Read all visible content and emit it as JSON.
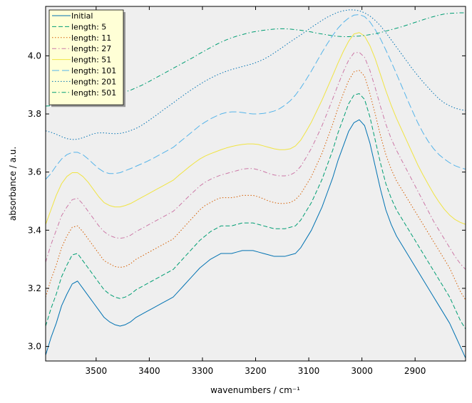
{
  "chart_data": {
    "type": "line",
    "title": "",
    "xlabel": "wavenumbers / cm⁻¹",
    "ylabel": "absorbance / a.u.",
    "xlim": [
      3595,
      2805
    ],
    "ylim": [
      2.95,
      4.17
    ],
    "x_inverted": true,
    "xticks": [
      3500,
      3400,
      3300,
      3200,
      3100,
      3000,
      2900
    ],
    "yticks": [
      3.0,
      3.2,
      3.4,
      3.6,
      3.8,
      4.0
    ],
    "ytick_labels": [
      "3.0",
      "3.2",
      "3.4",
      "3.6",
      "3.8",
      "4.0"
    ],
    "grid": false,
    "background": "#efefef",
    "legend_position": "top-left",
    "x": [
      3595,
      3585,
      3575,
      3565,
      3555,
      3545,
      3535,
      3525,
      3515,
      3505,
      3495,
      3485,
      3475,
      3465,
      3455,
      3445,
      3435,
      3425,
      3415,
      3405,
      3395,
      3385,
      3375,
      3365,
      3355,
      3345,
      3335,
      3325,
      3315,
      3305,
      3295,
      3285,
      3275,
      3265,
      3255,
      3245,
      3235,
      3225,
      3215,
      3205,
      3195,
      3185,
      3175,
      3165,
      3155,
      3145,
      3135,
      3125,
      3115,
      3105,
      3095,
      3085,
      3075,
      3065,
      3055,
      3045,
      3035,
      3025,
      3015,
      3005,
      2995,
      2985,
      2975,
      2965,
      2955,
      2945,
      2935,
      2925,
      2915,
      2905,
      2895,
      2885,
      2875,
      2865,
      2855,
      2845,
      2835,
      2825,
      2815,
      2805
    ],
    "series": [
      {
        "name": "Initial",
        "color": "#0072b2",
        "dash": "solid",
        "values": [
          2.97,
          3.03,
          3.08,
          3.14,
          3.18,
          3.215,
          3.225,
          3.2,
          3.175,
          3.15,
          3.125,
          3.1,
          3.085,
          3.075,
          3.07,
          3.075,
          3.085,
          3.1,
          3.11,
          3.12,
          3.13,
          3.14,
          3.15,
          3.16,
          3.17,
          3.19,
          3.21,
          3.23,
          3.25,
          3.27,
          3.285,
          3.3,
          3.31,
          3.32,
          3.32,
          3.32,
          3.325,
          3.33,
          3.33,
          3.33,
          3.325,
          3.32,
          3.315,
          3.31,
          3.31,
          3.31,
          3.315,
          3.32,
          3.34,
          3.37,
          3.4,
          3.44,
          3.48,
          3.53,
          3.58,
          3.64,
          3.69,
          3.74,
          3.77,
          3.78,
          3.76,
          3.7,
          3.62,
          3.54,
          3.47,
          3.42,
          3.38,
          3.35,
          3.32,
          3.29,
          3.26,
          3.23,
          3.2,
          3.17,
          3.14,
          3.11,
          3.08,
          3.04,
          3.0,
          2.96
        ]
      },
      {
        "name": "length: 5",
        "color": "#009e73",
        "dash": "dashed",
        "values": [
          3.07,
          3.13,
          3.18,
          3.24,
          3.28,
          3.315,
          3.32,
          3.295,
          3.27,
          3.245,
          3.22,
          3.195,
          3.18,
          3.17,
          3.165,
          3.17,
          3.18,
          3.195,
          3.205,
          3.215,
          3.225,
          3.235,
          3.245,
          3.255,
          3.265,
          3.285,
          3.305,
          3.325,
          3.345,
          3.365,
          3.38,
          3.395,
          3.405,
          3.415,
          3.415,
          3.415,
          3.42,
          3.425,
          3.425,
          3.425,
          3.42,
          3.415,
          3.41,
          3.405,
          3.405,
          3.405,
          3.41,
          3.415,
          3.435,
          3.465,
          3.495,
          3.535,
          3.575,
          3.625,
          3.675,
          3.735,
          3.785,
          3.835,
          3.865,
          3.87,
          3.85,
          3.79,
          3.71,
          3.63,
          3.56,
          3.51,
          3.47,
          3.44,
          3.41,
          3.38,
          3.35,
          3.32,
          3.29,
          3.26,
          3.23,
          3.2,
          3.17,
          3.13,
          3.09,
          3.06
        ]
      },
      {
        "name": "length: 11",
        "color": "#d55e00",
        "dash": "dotted",
        "values": [
          3.17,
          3.23,
          3.28,
          3.34,
          3.38,
          3.41,
          3.415,
          3.395,
          3.37,
          3.345,
          3.32,
          3.295,
          3.285,
          3.275,
          3.272,
          3.275,
          3.285,
          3.3,
          3.31,
          3.32,
          3.33,
          3.34,
          3.35,
          3.36,
          3.37,
          3.39,
          3.41,
          3.43,
          3.45,
          3.47,
          3.485,
          3.495,
          3.505,
          3.512,
          3.512,
          3.512,
          3.515,
          3.52,
          3.52,
          3.52,
          3.515,
          3.508,
          3.5,
          3.495,
          3.492,
          3.492,
          3.495,
          3.505,
          3.525,
          3.555,
          3.585,
          3.625,
          3.665,
          3.715,
          3.765,
          3.82,
          3.87,
          3.915,
          3.945,
          3.95,
          3.93,
          3.87,
          3.8,
          3.725,
          3.66,
          3.61,
          3.57,
          3.54,
          3.51,
          3.48,
          3.45,
          3.42,
          3.39,
          3.36,
          3.33,
          3.3,
          3.27,
          3.23,
          3.19,
          3.16
        ]
      },
      {
        "name": "length: 27",
        "color": "#cc79a7",
        "dash": "dashdot",
        "values": [
          3.29,
          3.35,
          3.4,
          3.45,
          3.48,
          3.505,
          3.51,
          3.49,
          3.465,
          3.44,
          3.415,
          3.395,
          3.382,
          3.375,
          3.372,
          3.375,
          3.383,
          3.395,
          3.405,
          3.415,
          3.425,
          3.435,
          3.445,
          3.455,
          3.465,
          3.482,
          3.5,
          3.518,
          3.535,
          3.552,
          3.565,
          3.575,
          3.583,
          3.59,
          3.595,
          3.6,
          3.605,
          3.61,
          3.612,
          3.612,
          3.608,
          3.602,
          3.595,
          3.59,
          3.587,
          3.587,
          3.59,
          3.6,
          3.62,
          3.65,
          3.682,
          3.72,
          3.76,
          3.805,
          3.852,
          3.9,
          3.945,
          3.985,
          4.01,
          4.012,
          3.995,
          3.95,
          3.89,
          3.825,
          3.765,
          3.715,
          3.675,
          3.64,
          3.605,
          3.57,
          3.535,
          3.5,
          3.465,
          3.43,
          3.4,
          3.37,
          3.34,
          3.31,
          3.285,
          3.265
        ]
      },
      {
        "name": "length: 51",
        "color": "#f0e442",
        "dash": "solid",
        "values": [
          3.42,
          3.47,
          3.52,
          3.56,
          3.585,
          3.598,
          3.598,
          3.585,
          3.565,
          3.54,
          3.515,
          3.495,
          3.485,
          3.48,
          3.48,
          3.485,
          3.492,
          3.502,
          3.512,
          3.522,
          3.532,
          3.542,
          3.552,
          3.562,
          3.572,
          3.588,
          3.603,
          3.618,
          3.632,
          3.645,
          3.655,
          3.663,
          3.67,
          3.677,
          3.683,
          3.688,
          3.692,
          3.695,
          3.697,
          3.697,
          3.695,
          3.69,
          3.685,
          3.68,
          3.677,
          3.677,
          3.68,
          3.69,
          3.71,
          3.74,
          3.772,
          3.81,
          3.848,
          3.89,
          3.932,
          3.975,
          4.015,
          4.05,
          4.075,
          4.08,
          4.068,
          4.035,
          3.99,
          3.935,
          3.88,
          3.83,
          3.785,
          3.745,
          3.705,
          3.665,
          3.625,
          3.59,
          3.557,
          3.525,
          3.497,
          3.472,
          3.452,
          3.437,
          3.427,
          3.42
        ]
      },
      {
        "name": "length: 101",
        "color": "#56b4e9",
        "dash": "longdash",
        "values": [
          3.575,
          3.595,
          3.622,
          3.645,
          3.66,
          3.668,
          3.668,
          3.66,
          3.645,
          3.628,
          3.612,
          3.6,
          3.595,
          3.595,
          3.598,
          3.605,
          3.612,
          3.62,
          3.628,
          3.636,
          3.645,
          3.655,
          3.665,
          3.675,
          3.685,
          3.7,
          3.715,
          3.73,
          3.745,
          3.76,
          3.772,
          3.783,
          3.792,
          3.8,
          3.805,
          3.807,
          3.807,
          3.805,
          3.802,
          3.8,
          3.8,
          3.802,
          3.805,
          3.81,
          3.818,
          3.83,
          3.845,
          3.865,
          3.89,
          3.918,
          3.948,
          3.98,
          4.012,
          4.042,
          4.07,
          4.095,
          4.115,
          4.13,
          4.14,
          4.142,
          4.135,
          4.117,
          4.09,
          4.058,
          4.02,
          3.98,
          3.938,
          3.895,
          3.852,
          3.81,
          3.77,
          3.735,
          3.705,
          3.68,
          3.66,
          3.645,
          3.632,
          3.622,
          3.615,
          3.61
        ]
      },
      {
        "name": "length: 201",
        "color": "#0072b2",
        "dash": "dotted",
        "values": [
          3.742,
          3.737,
          3.73,
          3.722,
          3.715,
          3.712,
          3.713,
          3.718,
          3.725,
          3.732,
          3.735,
          3.735,
          3.733,
          3.732,
          3.733,
          3.737,
          3.743,
          3.75,
          3.76,
          3.772,
          3.785,
          3.798,
          3.812,
          3.825,
          3.838,
          3.852,
          3.865,
          3.878,
          3.89,
          3.902,
          3.913,
          3.923,
          3.932,
          3.94,
          3.947,
          3.953,
          3.958,
          3.963,
          3.968,
          3.973,
          3.98,
          3.988,
          3.998,
          4.01,
          4.022,
          4.035,
          4.048,
          4.06,
          4.072,
          4.085,
          4.098,
          4.11,
          4.122,
          4.133,
          4.142,
          4.15,
          4.155,
          4.158,
          4.158,
          4.155,
          4.148,
          4.137,
          4.122,
          4.103,
          4.08,
          4.055,
          4.03,
          4.005,
          3.98,
          3.955,
          3.932,
          3.91,
          3.89,
          3.87,
          3.852,
          3.838,
          3.828,
          3.82,
          3.815,
          3.812
        ]
      },
      {
        "name": "length: 501",
        "color": "#009e73",
        "dash": "dashdot",
        "values": [
          3.827,
          3.828,
          3.83,
          3.833,
          3.836,
          3.84,
          3.845,
          3.85,
          3.855,
          3.86,
          3.863,
          3.866,
          3.868,
          3.87,
          3.872,
          3.876,
          3.882,
          3.89,
          3.898,
          3.907,
          3.917,
          3.927,
          3.937,
          3.947,
          3.957,
          3.967,
          3.977,
          3.987,
          3.997,
          4.008,
          4.018,
          4.028,
          4.038,
          4.047,
          4.055,
          4.062,
          4.068,
          4.073,
          4.078,
          4.082,
          4.085,
          4.088,
          4.09,
          4.092,
          4.093,
          4.093,
          4.092,
          4.09,
          4.088,
          4.085,
          4.082,
          4.078,
          4.075,
          4.072,
          4.069,
          4.067,
          4.066,
          4.066,
          4.067,
          4.068,
          4.07,
          4.073,
          4.076,
          4.08,
          4.085,
          4.09,
          4.095,
          4.1,
          4.106,
          4.112,
          4.118,
          4.124,
          4.13,
          4.135,
          4.14,
          4.144,
          4.146,
          4.147,
          4.148,
          4.148
        ]
      }
    ]
  }
}
